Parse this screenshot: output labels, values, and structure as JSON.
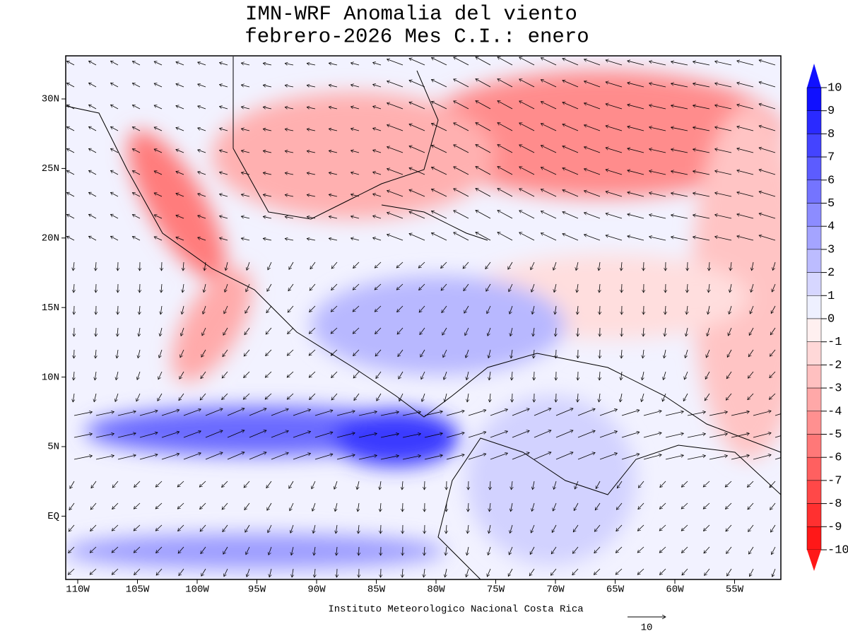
{
  "header": {
    "title_line1": "IMN-WRF Anomalia del viento",
    "title_line2": "febrero-2026 Mes C.I.: enero"
  },
  "map": {
    "lat_labels": [
      "30N",
      "25N",
      "20N",
      "15N",
      "10N",
      "5N",
      "EQ"
    ],
    "lon_labels": [
      "110W",
      "105W",
      "100W",
      "95W",
      "90W",
      "85W",
      "80W",
      "75W",
      "70W",
      "65W",
      "60W",
      "55W"
    ]
  },
  "colorbar": {
    "labels": [
      "10",
      "9",
      "8",
      "7",
      "6",
      "5",
      "4",
      "3",
      "2",
      "1",
      "0",
      "-1",
      "-2",
      "-3",
      "-4",
      "-5",
      "-6",
      "-7",
      "-8",
      "-9",
      "-10"
    ],
    "colors": [
      "#1010ff",
      "#2a2aff",
      "#4444ff",
      "#5c5cff",
      "#7474ff",
      "#8c8cff",
      "#a4a4ff",
      "#bcbcff",
      "#d6d6ff",
      "#eef0ff",
      "#fff0f0",
      "#ffd8d8",
      "#ffc0c0",
      "#ffa8a8",
      "#ff9090",
      "#ff7878",
      "#ff6060",
      "#ff4848",
      "#ff3030",
      "#ff1818"
    ]
  },
  "footer": {
    "institution": "Instituto Meteorologico Nacional Costa Rica",
    "reference_vector_label": "10"
  }
}
